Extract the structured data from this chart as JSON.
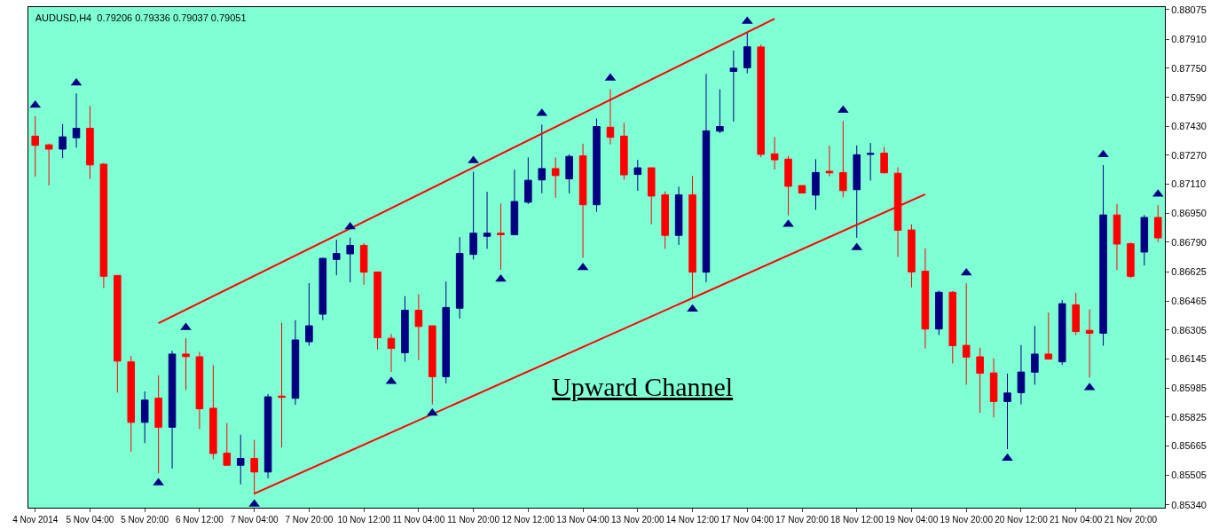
{
  "chart_data": {
    "type": "candlestick",
    "title": "AUDUSD,H4  0.79206 0.79336 0.79037 0.79051",
    "annotations": [
      "Upward Channel"
    ],
    "colors": [
      "#ff0000",
      "#ff0000",
      "#000080",
      "#000080",
      "#ff0000",
      "#ff0000",
      "#ff0000",
      "#ff0000",
      "#000080",
      "#ff0000",
      "#000080",
      "#ff0000",
      "#ff0000",
      "#ff0000",
      "#ff0000",
      "#000080",
      "#ff0000",
      "#000080",
      "#ff0000",
      "#000080",
      "#000080",
      "#000080",
      "#000080",
      "#000080",
      "#ff0000",
      "#ff0000",
      "#ff0000",
      "#000080",
      "#ff0000",
      "#ff0000",
      "#000080",
      "#000080",
      "#000080",
      "#000080",
      "#ff0000",
      "#000080",
      "#000080",
      "#000080",
      "#ff0000",
      "#000080",
      "#ff0000",
      "#000080",
      "#ff0000",
      "#ff0000",
      "#000080",
      "#ff0000",
      "#ff0000",
      "#000080",
      "#ff0000",
      "#000080",
      "#000080",
      "#000080",
      "#000080",
      "#ff0000",
      "#ff0000",
      "#ff0000",
      "#ff0000",
      "#000080",
      "#ff0000",
      "#ff0000",
      "#000080",
      "#000080",
      "#ff0000",
      "#ff0000",
      "#ff0000",
      "#ff0000",
      "#000080",
      "#ff0000",
      "#ff0000",
      "#ff0000",
      "#ff0000",
      "#000080",
      "#000080",
      "#000080",
      "#ff0000",
      "#000080",
      "#ff0000",
      "#ff0000",
      "#000080",
      "#ff0000",
      "#ff0000",
      "#000080",
      "#ff0000"
    ],
    "categories": [
      "4 Nov 2014",
      null,
      null,
      null,
      "5 Nov 04:00",
      null,
      null,
      null,
      "5 Nov 20:00",
      null,
      null,
      null,
      "6 Nov 12:00",
      null,
      null,
      null,
      "7 Nov 04:00",
      null,
      null,
      null,
      "7 Nov 20:00",
      null,
      null,
      null,
      "10 Nov 12:00",
      null,
      null,
      null,
      "11 Nov 04:00",
      null,
      null,
      null,
      "11 Nov 20:00",
      null,
      null,
      null,
      "12 Nov 12:00",
      null,
      null,
      null,
      "13 Nov 04:00",
      null,
      null,
      null,
      "13 Nov 20:00",
      null,
      null,
      null,
      "14 Nov 12:00",
      null,
      null,
      null,
      "17 Nov 04:00",
      null,
      null,
      null,
      "17 Nov 20:00",
      null,
      null,
      null,
      "18 Nov 12:00",
      null,
      null,
      null,
      "19 Nov 04:00",
      null,
      null,
      null,
      "19 Nov 20:00",
      null,
      null,
      null,
      "20 Nov 12:00",
      null,
      null,
      null,
      "21 Nov 04:00",
      null,
      null,
      null,
      "21 Nov 20:00",
      null,
      null
    ],
    "ohlc": [
      [
        0.87376,
        0.87486,
        0.87152,
        0.87325
      ],
      [
        0.87328,
        0.87334,
        0.87104,
        0.87304
      ],
      [
        0.87304,
        0.87442,
        0.87255,
        0.87372
      ],
      [
        0.87367,
        0.87612,
        0.87312,
        0.87419
      ],
      [
        0.87419,
        0.87542,
        0.8714,
        0.87217
      ],
      [
        0.87221,
        0.87228,
        0.86537,
        0.86602
      ],
      [
        0.86607,
        0.86607,
        0.8596,
        0.86134
      ],
      [
        0.8613,
        0.86163,
        0.85634,
        0.85796
      ],
      [
        0.85796,
        0.85967,
        0.85681,
        0.85919
      ],
      [
        0.8593,
        0.86056,
        0.85515,
        0.85769
      ],
      [
        0.85769,
        0.86191,
        0.85541,
        0.86173
      ],
      [
        0.86173,
        0.86261,
        0.85974,
        0.86159
      ],
      [
        0.86158,
        0.86186,
        0.85759,
        0.85871
      ],
      [
        0.85874,
        0.86112,
        0.85593,
        0.85624
      ],
      [
        0.85626,
        0.85793,
        0.85559,
        0.85559
      ],
      [
        0.85559,
        0.85728,
        0.85454,
        0.85597
      ],
      [
        0.85597,
        0.857,
        0.85398,
        0.85522
      ],
      [
        0.85522,
        0.85952,
        0.85487,
        0.85937
      ],
      [
        0.85941,
        0.86346,
        0.85658,
        0.85934
      ],
      [
        0.85929,
        0.8636,
        0.85893,
        0.86251
      ],
      [
        0.86241,
        0.86565,
        0.86219,
        0.86329
      ],
      [
        0.86393,
        0.86704,
        0.8636,
        0.86701
      ],
      [
        0.86695,
        0.86804,
        0.86608,
        0.86728
      ],
      [
        0.86726,
        0.86816,
        0.86569,
        0.86773
      ],
      [
        0.86773,
        0.86786,
        0.86556,
        0.86625
      ],
      [
        0.86626,
        0.86626,
        0.86198,
        0.86263
      ],
      [
        0.8626,
        0.86284,
        0.86074,
        0.86204
      ],
      [
        0.8618,
        0.86493,
        0.8613,
        0.86415
      ],
      [
        0.86415,
        0.86504,
        0.86139,
        0.86325
      ],
      [
        0.86329,
        0.86329,
        0.85895,
        0.86048
      ],
      [
        0.86048,
        0.86573,
        0.86011,
        0.8643
      ],
      [
        0.86426,
        0.86819,
        0.86369,
        0.86728
      ],
      [
        0.86723,
        0.87179,
        0.86695,
        0.8684
      ],
      [
        0.86823,
        0.87069,
        0.86754,
        0.8684
      ],
      [
        0.8684,
        0.87004,
        0.86639,
        0.86832
      ],
      [
        0.86832,
        0.87191,
        0.86832,
        0.87015
      ],
      [
        0.87011,
        0.87258,
        0.87001,
        0.87132
      ],
      [
        0.87134,
        0.8744,
        0.8706,
        0.87197
      ],
      [
        0.87197,
        0.87258,
        0.87036,
        0.87158
      ],
      [
        0.8714,
        0.87275,
        0.8706,
        0.87264
      ],
      [
        0.87267,
        0.87334,
        0.86704,
        0.86997
      ],
      [
        0.86997,
        0.87473,
        0.86958,
        0.87429
      ],
      [
        0.87425,
        0.87634,
        0.8733,
        0.87369
      ],
      [
        0.87376,
        0.87449,
        0.87136,
        0.87162
      ],
      [
        0.87164,
        0.87245,
        0.87074,
        0.87201
      ],
      [
        0.87201,
        0.87201,
        0.86889,
        0.87045
      ],
      [
        0.87052,
        0.87071,
        0.86754,
        0.86828
      ],
      [
        0.86828,
        0.87097,
        0.86775,
        0.87052
      ],
      [
        0.87052,
        0.87156,
        0.86482,
        0.86625
      ],
      [
        0.86625,
        0.87719,
        0.86569,
        0.87405
      ],
      [
        0.87403,
        0.87634,
        0.87392,
        0.87429
      ],
      [
        0.87733,
        0.87849,
        0.87456,
        0.87751
      ],
      [
        0.87753,
        0.87949,
        0.87723,
        0.87869
      ],
      [
        0.87868,
        0.87881,
        0.8726,
        0.87275
      ],
      [
        0.87278,
        0.87371,
        0.87191,
        0.87245
      ],
      [
        0.87249,
        0.87267,
        0.86939,
        0.87099
      ],
      [
        0.87103,
        0.87103,
        0.87062,
        0.87062
      ],
      [
        0.8705,
        0.87249,
        0.86969,
        0.87175
      ],
      [
        0.87182,
        0.87323,
        0.87154,
        0.87173
      ],
      [
        0.87175,
        0.8746,
        0.87038,
        0.87075
      ],
      [
        0.8708,
        0.87325,
        0.86815,
        0.87273
      ],
      [
        0.87275,
        0.87338,
        0.8713,
        0.8728
      ],
      [
        0.87282,
        0.87316,
        0.87173,
        0.87173
      ],
      [
        0.87171,
        0.87204,
        0.86708,
        0.86856
      ],
      [
        0.86858,
        0.86889,
        0.86541,
        0.86626
      ],
      [
        0.8663,
        0.86756,
        0.86204,
        0.86311
      ],
      [
        0.86311,
        0.86524,
        0.86278,
        0.86514
      ],
      [
        0.86514,
        0.86521,
        0.86121,
        0.86219
      ],
      [
        0.86221,
        0.86563,
        0.86004,
        0.86156
      ],
      [
        0.86158,
        0.86208,
        0.85849,
        0.86067
      ],
      [
        0.86069,
        0.86149,
        0.85824,
        0.85911
      ],
      [
        0.85911,
        0.86065,
        0.85648,
        0.85958
      ],
      [
        0.8596,
        0.86223,
        0.85895,
        0.86074
      ],
      [
        0.86073,
        0.86328,
        0.86004,
        0.86173
      ],
      [
        0.86173,
        0.86402,
        0.86145,
        0.86145
      ],
      [
        0.8613,
        0.86471,
        0.86112,
        0.86451
      ],
      [
        0.86445,
        0.8651,
        0.86278,
        0.86297
      ],
      [
        0.86304,
        0.86419,
        0.86043,
        0.86288
      ],
      [
        0.86288,
        0.87216,
        0.86219,
        0.86941
      ],
      [
        0.86941,
        0.87001,
        0.86637,
        0.8678
      ],
      [
        0.86782,
        0.86789,
        0.86593,
        0.86602
      ],
      [
        0.86736,
        0.86941,
        0.86662,
        0.86927
      ],
      [
        0.86927,
        0.86995,
        0.86793,
        0.86814
      ]
    ],
    "series": [
      {
        "type": "line",
        "color": "#ff0000",
        "values": [
          null,
          null,
          null,
          null,
          null,
          null,
          null,
          null,
          null,
          0.86343,
          null,
          null,
          null,
          null,
          null,
          null,
          null,
          null,
          null,
          null,
          null,
          null,
          null,
          null,
          null,
          null,
          null,
          null,
          null,
          null,
          null,
          null,
          null,
          null,
          null,
          null,
          null,
          null,
          null,
          null,
          null,
          null,
          null,
          null,
          null,
          null,
          null,
          null,
          null,
          null,
          null,
          null,
          null,
          null,
          0.88024,
          null,
          null,
          null,
          null,
          null,
          null,
          null,
          null,
          null,
          null,
          null,
          null,
          null,
          null,
          null,
          null,
          null,
          null,
          null,
          null,
          null,
          null,
          null,
          null,
          null,
          null,
          null,
          null
        ]
      },
      {
        "type": "line",
        "color": "#ff0000",
        "values": [
          null,
          null,
          null,
          null,
          null,
          null,
          null,
          null,
          null,
          null,
          null,
          null,
          null,
          null,
          null,
          null,
          0.85403,
          null,
          null,
          null,
          null,
          null,
          null,
          null,
          null,
          null,
          null,
          null,
          null,
          null,
          null,
          null,
          null,
          null,
          null,
          null,
          null,
          null,
          null,
          null,
          null,
          null,
          null,
          null,
          null,
          null,
          null,
          null,
          null,
          null,
          null,
          null,
          null,
          null,
          null,
          null,
          null,
          null,
          null,
          null,
          null,
          null,
          null,
          null,
          null,
          0.87055,
          null,
          null,
          null,
          null,
          null,
          null,
          null,
          null,
          null,
          null,
          null,
          null,
          null,
          null,
          null,
          null,
          null
        ]
      },
      {
        "type": "scatter",
        "color": "#000080",
        "marker": "triangle",
        "values": [
          0.87547,
          null,
          null,
          0.87669,
          null,
          null,
          null,
          null,
          null,
          null,
          null,
          0.86319,
          null,
          null,
          null,
          null,
          null,
          null,
          null,
          null,
          null,
          null,
          null,
          0.86875,
          null,
          null,
          null,
          null,
          null,
          null,
          null,
          null,
          0.8724,
          null,
          null,
          null,
          null,
          0.87501,
          null,
          null,
          null,
          null,
          0.87696,
          null,
          null,
          null,
          null,
          null,
          null,
          null,
          null,
          null,
          0.8801,
          null,
          null,
          null,
          null,
          null,
          null,
          0.87518,
          null,
          null,
          null,
          null,
          null,
          null,
          null,
          null,
          0.86621,
          null,
          null,
          null,
          null,
          null,
          null,
          null,
          null,
          null,
          0.87274,
          null,
          null,
          null,
          0.87055
        ]
      },
      {
        "type": "scatter",
        "color": "#000080",
        "marker": "triangle",
        "values": [
          null,
          null,
          null,
          null,
          null,
          null,
          null,
          null,
          null,
          0.85462,
          null,
          null,
          null,
          null,
          null,
          null,
          0.85345,
          null,
          null,
          null,
          null,
          null,
          null,
          null,
          null,
          null,
          0.86022,
          null,
          null,
          0.85847,
          null,
          null,
          null,
          null,
          0.86587,
          null,
          null,
          null,
          null,
          null,
          0.8665,
          null,
          null,
          null,
          null,
          null,
          null,
          null,
          0.86421,
          null,
          null,
          null,
          null,
          null,
          null,
          0.86889,
          null,
          null,
          null,
          null,
          0.8676,
          null,
          null,
          null,
          null,
          null,
          null,
          null,
          null,
          null,
          null,
          0.85598,
          null,
          null,
          null,
          null,
          null,
          0.85988,
          null,
          null,
          null,
          null,
          null
        ]
      }
    ],
    "ylim": [
      0.85325,
      0.88088
    ],
    "yticks": [
      {
        "value": 0.88075,
        "label": "0.88075"
      },
      {
        "value": 0.8791,
        "label": "0.87910"
      },
      {
        "value": 0.8775,
        "label": "0.87750"
      },
      {
        "value": 0.8759,
        "label": "0.87590"
      },
      {
        "value": 0.8743,
        "label": "0.87430"
      },
      {
        "value": 0.8727,
        "label": "0.87270"
      },
      {
        "value": 0.8711,
        "label": "0.87110"
      },
      {
        "value": 0.8695,
        "label": "0.86950"
      },
      {
        "value": 0.8679,
        "label": "0.86790"
      },
      {
        "value": 0.86625,
        "label": "0.86625"
      },
      {
        "value": 0.86465,
        "label": "0.86465"
      },
      {
        "value": 0.86305,
        "label": "0.86305"
      },
      {
        "value": 0.86145,
        "label": "0.86145"
      },
      {
        "value": 0.85985,
        "label": "0.85985"
      },
      {
        "value": 0.85825,
        "label": "0.85825"
      },
      {
        "value": 0.85665,
        "label": "0.85665"
      },
      {
        "value": 0.85505,
        "label": "0.85505"
      },
      {
        "value": 0.8534,
        "label": "0.85340"
      }
    ],
    "grid": false
  }
}
